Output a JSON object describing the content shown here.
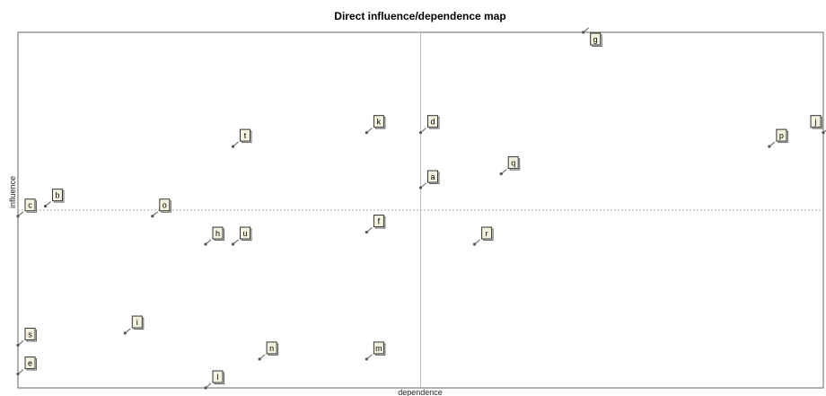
{
  "chart_data": {
    "type": "scatter",
    "title": "Direct influence/dependence map",
    "xlabel": "dependence",
    "ylabel": "influence",
    "grid": false,
    "xlim": [
      0,
      100
    ],
    "ylim": [
      0,
      100
    ],
    "center_lines": {
      "x": 50,
      "y": 50
    },
    "points": [
      {
        "label": "g",
        "x": 70.2,
        "y": 100.0
      },
      {
        "label": "k",
        "x": 43.3,
        "y": 71.8
      },
      {
        "label": "d",
        "x": 50.0,
        "y": 71.8
      },
      {
        "label": "t",
        "x": 26.7,
        "y": 67.9
      },
      {
        "label": "p",
        "x": 93.3,
        "y": 67.9
      },
      {
        "label": "j",
        "x": 100.0,
        "y": 71.8
      },
      {
        "label": "q",
        "x": 60.0,
        "y": 60.2
      },
      {
        "label": "a",
        "x": 50.0,
        "y": 56.3
      },
      {
        "label": "c",
        "x": 0.0,
        "y": 48.3
      },
      {
        "label": "b",
        "x": 3.4,
        "y": 51.1
      },
      {
        "label": "o",
        "x": 16.7,
        "y": 48.3
      },
      {
        "label": "f",
        "x": 43.3,
        "y": 43.8
      },
      {
        "label": "h",
        "x": 23.3,
        "y": 40.4
      },
      {
        "label": "u",
        "x": 26.7,
        "y": 40.4
      },
      {
        "label": "r",
        "x": 56.7,
        "y": 40.4
      },
      {
        "label": "i",
        "x": 13.3,
        "y": 15.4
      },
      {
        "label": "s",
        "x": 0.0,
        "y": 12.0
      },
      {
        "label": "n",
        "x": 30.0,
        "y": 8.1
      },
      {
        "label": "m",
        "x": 43.3,
        "y": 8.1
      },
      {
        "label": "e",
        "x": 0.0,
        "y": 3.9
      },
      {
        "label": "l",
        "x": 23.3,
        "y": 0.0
      }
    ]
  }
}
